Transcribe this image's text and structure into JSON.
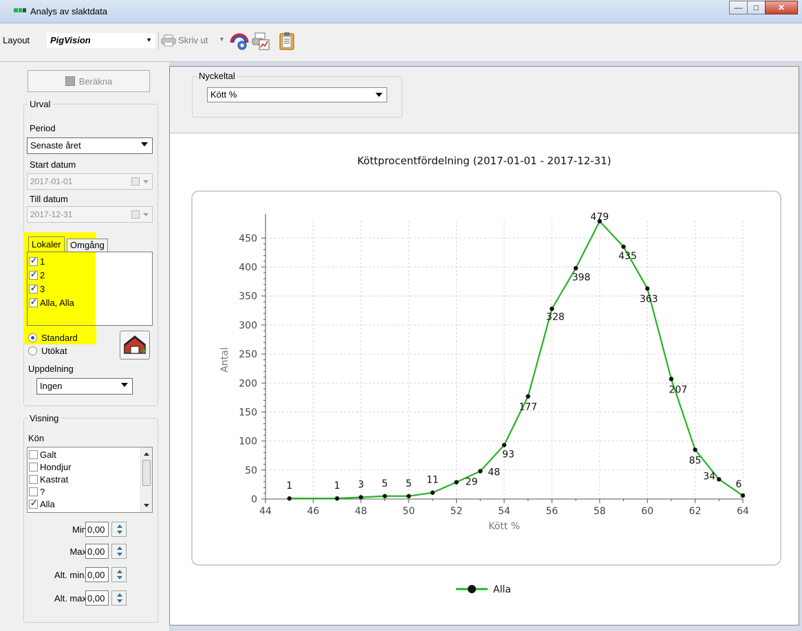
{
  "window": {
    "title": "Analys av slaktdata"
  },
  "toolbar": {
    "layout_label": "Layout",
    "layout_value": "PigVision",
    "print_label": "Skriv ut"
  },
  "left": {
    "calculate_label": "Beräkna",
    "urval": {
      "legend": "Urval",
      "period_label": "Period",
      "period_value": "Senaste året",
      "start_label": "Start datum",
      "start_value": "2017-01-01",
      "end_label": "Till datum",
      "end_value": "2017-12-31"
    },
    "tabs": [
      "Lokaler",
      "Omgång"
    ],
    "lokaler": [
      {
        "label": "1",
        "checked": true
      },
      {
        "label": "2",
        "checked": true
      },
      {
        "label": "3",
        "checked": true
      },
      {
        "label": "Alla, Alla",
        "checked": true
      }
    ],
    "radios": [
      {
        "label": "Standard",
        "selected": true
      },
      {
        "label": "Utökat",
        "selected": false
      }
    ],
    "uppdelning_label": "Uppdelning",
    "uppdelning_value": "Ingen",
    "visning": {
      "legend": "Visning",
      "kon_label": "Kön",
      "kon_items": [
        {
          "label": "Galt",
          "checked": false
        },
        {
          "label": "Hondjur",
          "checked": false
        },
        {
          "label": "Kastrat",
          "checked": false
        },
        {
          "label": "?",
          "checked": false
        },
        {
          "label": "Alla",
          "checked": true
        }
      ],
      "min_label": "Min",
      "min_value": "0,00",
      "max_label": "Max",
      "max_value": "0,00",
      "altmin_label": "Alt. min.",
      "altmin_value": "0,00",
      "altmax_label": "Alt. max",
      "altmax_value": "0,00"
    }
  },
  "main": {
    "nyckeltal_legend": "Nyckeltal",
    "nyckeltal_value": "Kött %"
  },
  "chart_data": {
    "type": "line",
    "title": "Köttprocentfördelning (2017-01-01 - 2017-12-31)",
    "xlabel": "Kött %",
    "ylabel": "Antal",
    "xlim": [
      44,
      64
    ],
    "ylim": [
      0,
      480
    ],
    "xticks": [
      44,
      46,
      48,
      50,
      52,
      54,
      56,
      58,
      60,
      62,
      64
    ],
    "yticks": [
      0,
      50,
      100,
      150,
      200,
      250,
      300,
      350,
      400,
      450
    ],
    "grid": true,
    "legend_position": "bottom-center",
    "series": [
      {
        "name": "Alla",
        "color": "#22b422",
        "x": [
          45,
          47,
          48,
          49,
          50,
          51,
          52,
          53,
          54,
          55,
          56,
          57,
          58,
          59,
          60,
          61,
          62,
          63,
          64
        ],
        "y": [
          1,
          1,
          3,
          5,
          5,
          11,
          29,
          48,
          93,
          177,
          328,
          398,
          479,
          435,
          363,
          207,
          85,
          34,
          6
        ],
        "labels": [
          "1",
          "1",
          "3",
          "5",
          "5",
          "11",
          "29",
          "48",
          "93",
          "177",
          "328",
          "398",
          "479",
          "435",
          "363",
          "207",
          "85",
          "34",
          "6"
        ]
      }
    ]
  }
}
